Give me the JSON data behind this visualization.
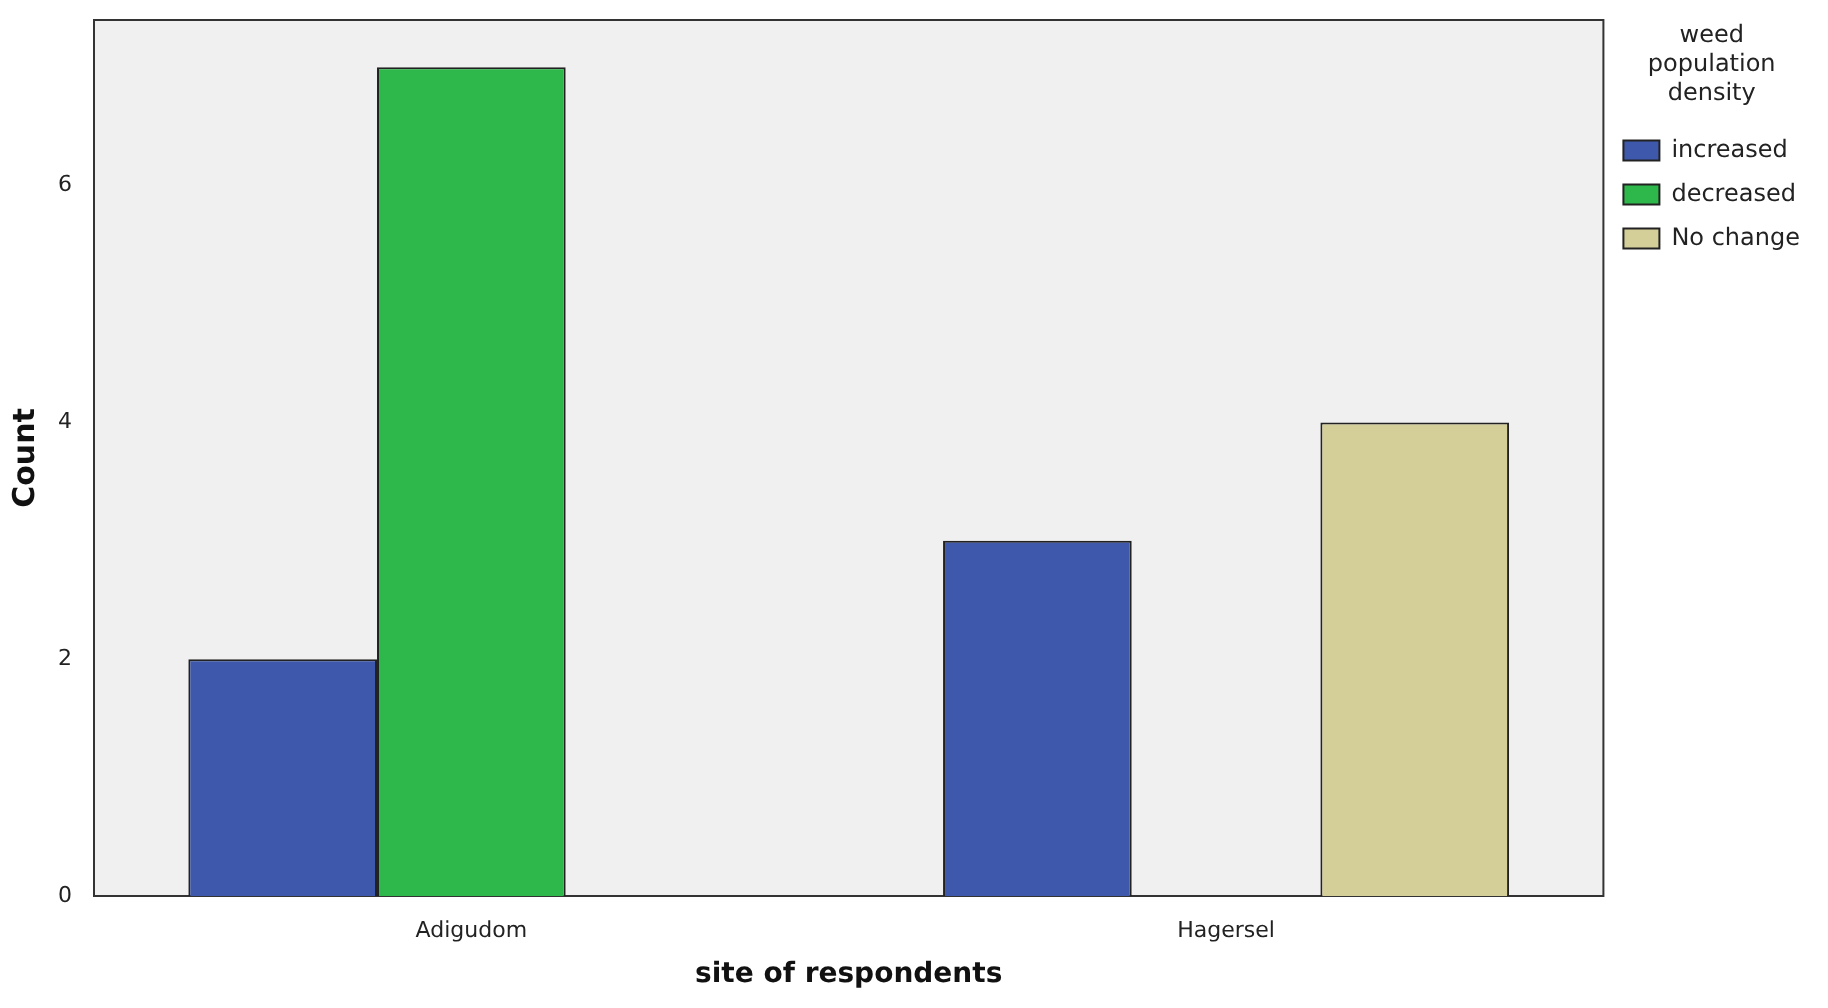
{
  "chart_data": {
    "type": "bar",
    "xlabel": "site of respondents",
    "ylabel": "Count",
    "legend_title": "weed population density",
    "legend": "right",
    "grid": false,
    "categories": [
      "Adigudom",
      "Hagersel"
    ],
    "series": [
      {
        "name": "increased",
        "color": "#3e58ac",
        "values": [
          2,
          3
        ]
      },
      {
        "name": "decreased",
        "color": "#2eb84b",
        "values": [
          7,
          null
        ]
      },
      {
        "name": "No change",
        "color": "#d4ce99",
        "values": [
          null,
          4
        ]
      }
    ],
    "ylim": [
      0,
      7.4
    ],
    "yticks": [
      0,
      2,
      4,
      6
    ]
  }
}
